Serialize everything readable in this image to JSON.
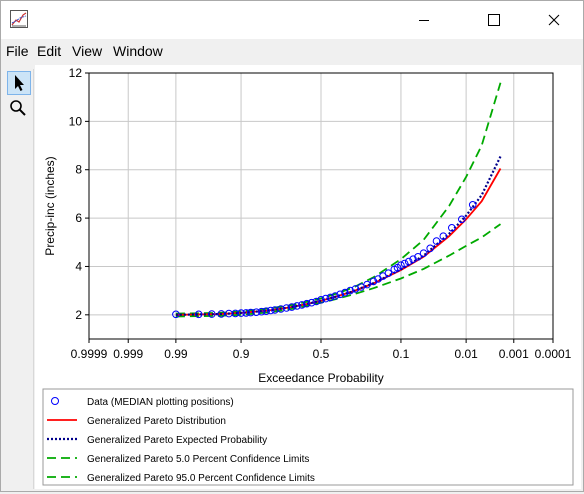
{
  "window": {
    "menu": [
      "File",
      "Edit",
      "View",
      "Window"
    ]
  },
  "icons": {
    "app": "chart-icon",
    "minimize": "minimize-icon",
    "maximize": "maximize-icon",
    "close": "close-icon",
    "pointer": "pointer-icon",
    "zoom": "magnifier-icon"
  },
  "chart_data": {
    "type": "scatter",
    "xlabel": "Exceedance Probability",
    "ylabel": "Precip-inc (inches)",
    "x_scale": "normal probability (descending)",
    "xlim": [
      0.9999,
      0.0001
    ],
    "ylim": [
      1,
      12
    ],
    "x_ticks": [
      {
        "p": 0.9999,
        "label": "0.9999"
      },
      {
        "p": 0.999,
        "label": "0.999"
      },
      {
        "p": 0.99,
        "label": "0.99"
      },
      {
        "p": 0.9,
        "label": "0.9"
      },
      {
        "p": 0.5,
        "label": "0.5"
      },
      {
        "p": 0.1,
        "label": "0.1"
      },
      {
        "p": 0.01,
        "label": "0.01"
      },
      {
        "p": 0.001,
        "label": "0.001"
      },
      {
        "p": 0.0001,
        "label": "0.0001"
      }
    ],
    "y_ticks": [
      2,
      4,
      6,
      8,
      10,
      12
    ],
    "grid": true,
    "legend_position": "bottom",
    "points": {
      "name": "Data (MEDIAN plotting positions)",
      "color": "#0000ff",
      "x": [
        0.99,
        0.975,
        0.96,
        0.945,
        0.93,
        0.915,
        0.9,
        0.885,
        0.87,
        0.85,
        0.83,
        0.81,
        0.79,
        0.77,
        0.74,
        0.71,
        0.68,
        0.65,
        0.62,
        0.59,
        0.56,
        0.53,
        0.5,
        0.47,
        0.44,
        0.41,
        0.38,
        0.35,
        0.32,
        0.29,
        0.26,
        0.23,
        0.2,
        0.18,
        0.16,
        0.14,
        0.12,
        0.11,
        0.1,
        0.09,
        0.08,
        0.07,
        0.06,
        0.05,
        0.04,
        0.032,
        0.025,
        0.018,
        0.012,
        0.0075
      ],
      "y": [
        2.02,
        2.02,
        2.03,
        2.04,
        2.05,
        2.06,
        2.07,
        2.08,
        2.09,
        2.11,
        2.13,
        2.15,
        2.18,
        2.2,
        2.24,
        2.28,
        2.32,
        2.37,
        2.41,
        2.46,
        2.5,
        2.55,
        2.62,
        2.67,
        2.72,
        2.78,
        2.85,
        2.92,
        3.0,
        3.07,
        3.15,
        3.25,
        3.38,
        3.48,
        3.6,
        3.72,
        3.88,
        3.95,
        4.05,
        4.12,
        4.2,
        4.3,
        4.4,
        4.55,
        4.75,
        5.05,
        5.25,
        5.6,
        5.95,
        6.55
      ]
    },
    "series": [
      {
        "name": "Generalized Pareto Distribution",
        "style": "solid",
        "color": "#ff0000",
        "x": [
          0.99,
          0.95,
          0.9,
          0.8,
          0.7,
          0.6,
          0.5,
          0.4,
          0.3,
          0.2,
          0.1,
          0.05,
          0.02,
          0.01,
          0.005,
          0.002
        ],
        "y": [
          2.0,
          2.03,
          2.08,
          2.18,
          2.3,
          2.43,
          2.58,
          2.76,
          2.98,
          3.3,
          3.85,
          4.4,
          5.25,
          5.95,
          6.7,
          8.05
        ]
      },
      {
        "name": "Generalized Pareto Expected Probability",
        "style": "dotted",
        "color": "#00008b",
        "x": [
          0.99,
          0.95,
          0.9,
          0.8,
          0.7,
          0.6,
          0.5,
          0.4,
          0.3,
          0.2,
          0.1,
          0.05,
          0.02,
          0.01,
          0.005,
          0.002
        ],
        "y": [
          2.0,
          2.03,
          2.08,
          2.18,
          2.3,
          2.43,
          2.58,
          2.76,
          2.98,
          3.31,
          3.88,
          4.45,
          5.35,
          6.1,
          6.95,
          8.55
        ]
      },
      {
        "name": "Generalized Pareto 5.0 Percent Confidence Limits",
        "style": "dashed",
        "color": "#00aa00",
        "x": [
          0.99,
          0.95,
          0.9,
          0.8,
          0.7,
          0.6,
          0.5,
          0.4,
          0.3,
          0.2,
          0.1,
          0.05,
          0.02,
          0.01,
          0.005,
          0.002
        ],
        "y": [
          1.93,
          1.96,
          2.0,
          2.1,
          2.22,
          2.36,
          2.5,
          2.66,
          2.85,
          3.1,
          3.5,
          3.9,
          4.45,
          4.85,
          5.2,
          5.75
        ]
      },
      {
        "name": "Generalized Pareto 95.0 Percent Confidence Limits",
        "style": "dashed",
        "color": "#00aa00",
        "x": [
          0.99,
          0.95,
          0.9,
          0.8,
          0.7,
          0.6,
          0.5,
          0.4,
          0.3,
          0.2,
          0.1,
          0.05,
          0.02,
          0.01,
          0.005,
          0.002
        ],
        "y": [
          2.05,
          2.08,
          2.14,
          2.26,
          2.38,
          2.52,
          2.68,
          2.88,
          3.14,
          3.55,
          4.3,
          5.1,
          6.5,
          7.7,
          9.0,
          11.6
        ]
      }
    ]
  }
}
